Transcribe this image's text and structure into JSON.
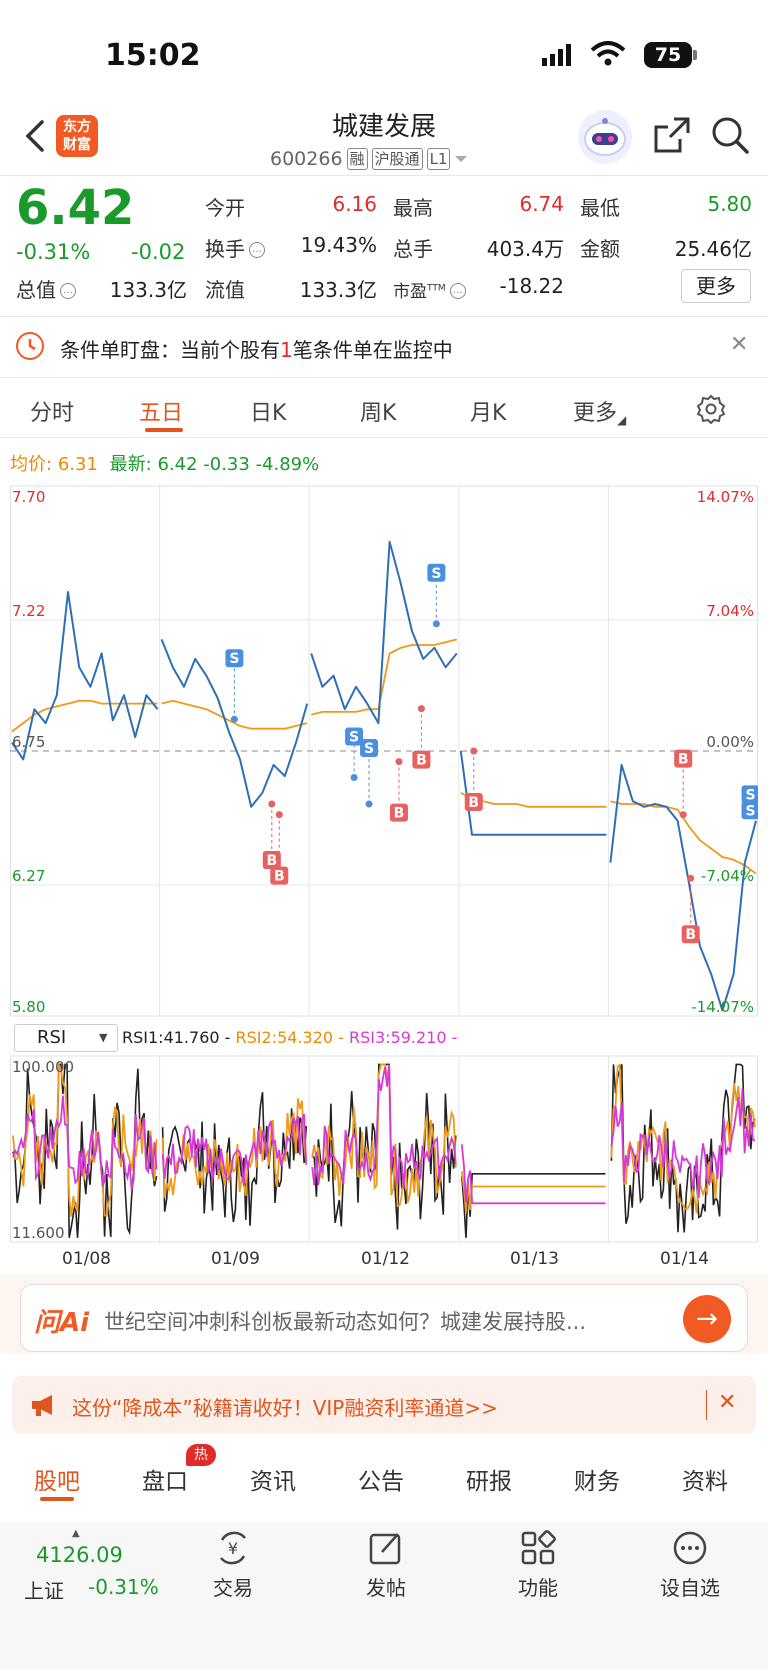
{
  "status_bar": {
    "time": "15:02",
    "battery": "75"
  },
  "header": {
    "brand_line1": "东方",
    "brand_line2": "财富",
    "stock_name": "城建发展",
    "stock_code": "600266",
    "tags": [
      "融",
      "沪股通",
      "L1"
    ]
  },
  "quote": {
    "price": "6.42",
    "change_pct": "-0.31%",
    "change_amt": "-0.02",
    "open_label": "今开",
    "open": "6.16",
    "high_label": "最高",
    "high": "6.74",
    "low_label": "最低",
    "low": "5.80",
    "turnover_label": "换手",
    "turnover": "19.43%",
    "volume_label": "总手",
    "volume": "403.4万",
    "amount_label": "金额",
    "amount": "25.46亿",
    "mktcap_label": "总值",
    "mktcap": "133.3亿",
    "float_label": "流值",
    "float_cap": "133.3亿",
    "pe_label": "市盈",
    "pe_sup": "TTM",
    "pe": "-18.22",
    "more_label": "更多"
  },
  "alert": {
    "prefix": "条件单盯盘：当前个股有",
    "count": "1",
    "suffix": "笔条件单在监控中"
  },
  "tabs": [
    {
      "label": "分时"
    },
    {
      "label": "五日"
    },
    {
      "label": "日K"
    },
    {
      "label": "周K"
    },
    {
      "label": "月K"
    },
    {
      "label": "更多"
    }
  ],
  "avg_row": {
    "avg_label": "均价:",
    "avg": "6.31",
    "latest_label": "最新:",
    "latest": "6.42",
    "chg": "-0.33",
    "chg_pct": "-4.89%"
  },
  "colors": {
    "price_line": "#2f6fb5",
    "avg_line": "#ee9a1a",
    "rsi1": "#222222",
    "rsi2": "#ee9a1a",
    "rsi3": "#d63ad6",
    "up": "#e02b2b",
    "down": "#1a9a2b",
    "accent": "#e0551d"
  },
  "chart_data": [
    {
      "type": "line",
      "title": "",
      "x": [
        "01/08",
        "01/09",
        "01/12",
        "01/13",
        "01/14"
      ],
      "ylim": [
        5.8,
        7.7
      ],
      "prev_close": 6.75,
      "left_ticks": [
        "7.70",
        "7.22",
        "6.75",
        "6.27",
        "5.80"
      ],
      "right_ticks": [
        "14.07%",
        "7.04%",
        "0.00%",
        "-7.04%",
        "-14.07%"
      ],
      "series": [
        {
          "role": "price",
          "days": [
            [
              6.78,
              6.72,
              6.9,
              6.85,
              6.95,
              7.32,
              7.05,
              6.98,
              7.1,
              6.86,
              6.95,
              6.8,
              6.95,
              6.9
            ],
            [
              7.15,
              7.05,
              6.98,
              7.08,
              7.02,
              6.94,
              6.82,
              6.72,
              6.55,
              6.6,
              6.7,
              6.66,
              6.78,
              6.92
            ],
            [
              7.1,
              6.98,
              7.02,
              6.9,
              6.98,
              6.92,
              6.85,
              7.5,
              7.35,
              7.18,
              7.08,
              7.12,
              7.05,
              7.1
            ],
            [
              6.75,
              6.45,
              6.45,
              6.45,
              6.45,
              6.45,
              6.45,
              6.45,
              6.45,
              6.45,
              6.45,
              6.45,
              6.45,
              6.45
            ],
            [
              6.35,
              6.7,
              6.57,
              6.55,
              6.56,
              6.55,
              6.5,
              6.28,
              6.05,
              5.95,
              5.82,
              5.95,
              6.35,
              6.5
            ]
          ]
        },
        {
          "role": "avg",
          "days": [
            [
              6.82,
              6.85,
              6.88,
              6.9,
              6.91,
              6.92,
              6.93,
              6.93,
              6.92,
              6.92,
              6.92,
              6.92,
              6.92,
              6.92
            ],
            [
              6.92,
              6.93,
              6.92,
              6.91,
              6.9,
              6.88,
              6.86,
              6.84,
              6.83,
              6.83,
              6.83,
              6.83,
              6.84,
              6.85
            ],
            [
              6.88,
              6.89,
              6.89,
              6.89,
              6.89,
              6.9,
              6.9,
              7.1,
              7.12,
              7.13,
              7.13,
              7.13,
              7.14,
              7.15
            ],
            [
              6.6,
              6.58,
              6.57,
              6.56,
              6.56,
              6.56,
              6.55,
              6.55,
              6.55,
              6.55,
              6.55,
              6.55,
              6.55,
              6.55
            ],
            [
              6.57,
              6.56,
              6.56,
              6.56,
              6.55,
              6.55,
              6.54,
              6.48,
              6.43,
              6.4,
              6.37,
              6.36,
              6.34,
              6.31
            ]
          ]
        }
      ],
      "trade_markers": [
        {
          "label": "S"
        },
        {
          "label": "B"
        },
        {
          "label": "B"
        },
        {
          "label": "S"
        },
        {
          "label": "S"
        },
        {
          "label": "B"
        },
        {
          "label": "B"
        },
        {
          "label": "S"
        },
        {
          "label": "B"
        },
        {
          "label": "B"
        },
        {
          "label": "B"
        },
        {
          "label": "S"
        },
        {
          "label": "S"
        }
      ]
    },
    {
      "type": "line",
      "title": "",
      "x": [
        "01/08",
        "01/09",
        "01/12",
        "01/13",
        "01/14"
      ],
      "ylim": [
        11.6,
        100
      ],
      "ticks": [
        "100.000",
        "11.600"
      ],
      "series": [
        {
          "name": "RSI1",
          "value": "41.760"
        },
        {
          "name": "RSI2",
          "value": "54.320"
        },
        {
          "name": "RSI3",
          "value": "59.210"
        }
      ]
    }
  ],
  "rsi": {
    "selector": "RSI",
    "rsi1": "RSI1:41.760 -",
    "rsi2": "RSI2:54.320 -",
    "rsi3": "RSI3:59.210 -"
  },
  "ai": {
    "logo": "问Ai",
    "text": "世纪空间冲刺科创板最新动态如何？城建发展持股..."
  },
  "promo": {
    "text": "这份“降成本”秘籍请收好！VIP融资利率通道>>"
  },
  "bottom_tabs": [
    {
      "label": "股吧"
    },
    {
      "label": "盘口"
    },
    {
      "label": "资讯"
    },
    {
      "label": "公告"
    },
    {
      "label": "研报"
    },
    {
      "label": "财务"
    },
    {
      "label": "资料"
    }
  ],
  "hot_badge": "热",
  "index": {
    "value": "4126.09",
    "name": "上证",
    "change": "-0.31%"
  },
  "bottom_nav": [
    {
      "label": "交易",
      "icon": "yen-cycle-icon"
    },
    {
      "label": "发帖",
      "icon": "edit-icon"
    },
    {
      "label": "功能",
      "icon": "grid-icon"
    },
    {
      "label": "设自选",
      "icon": "more-dots-icon"
    }
  ]
}
